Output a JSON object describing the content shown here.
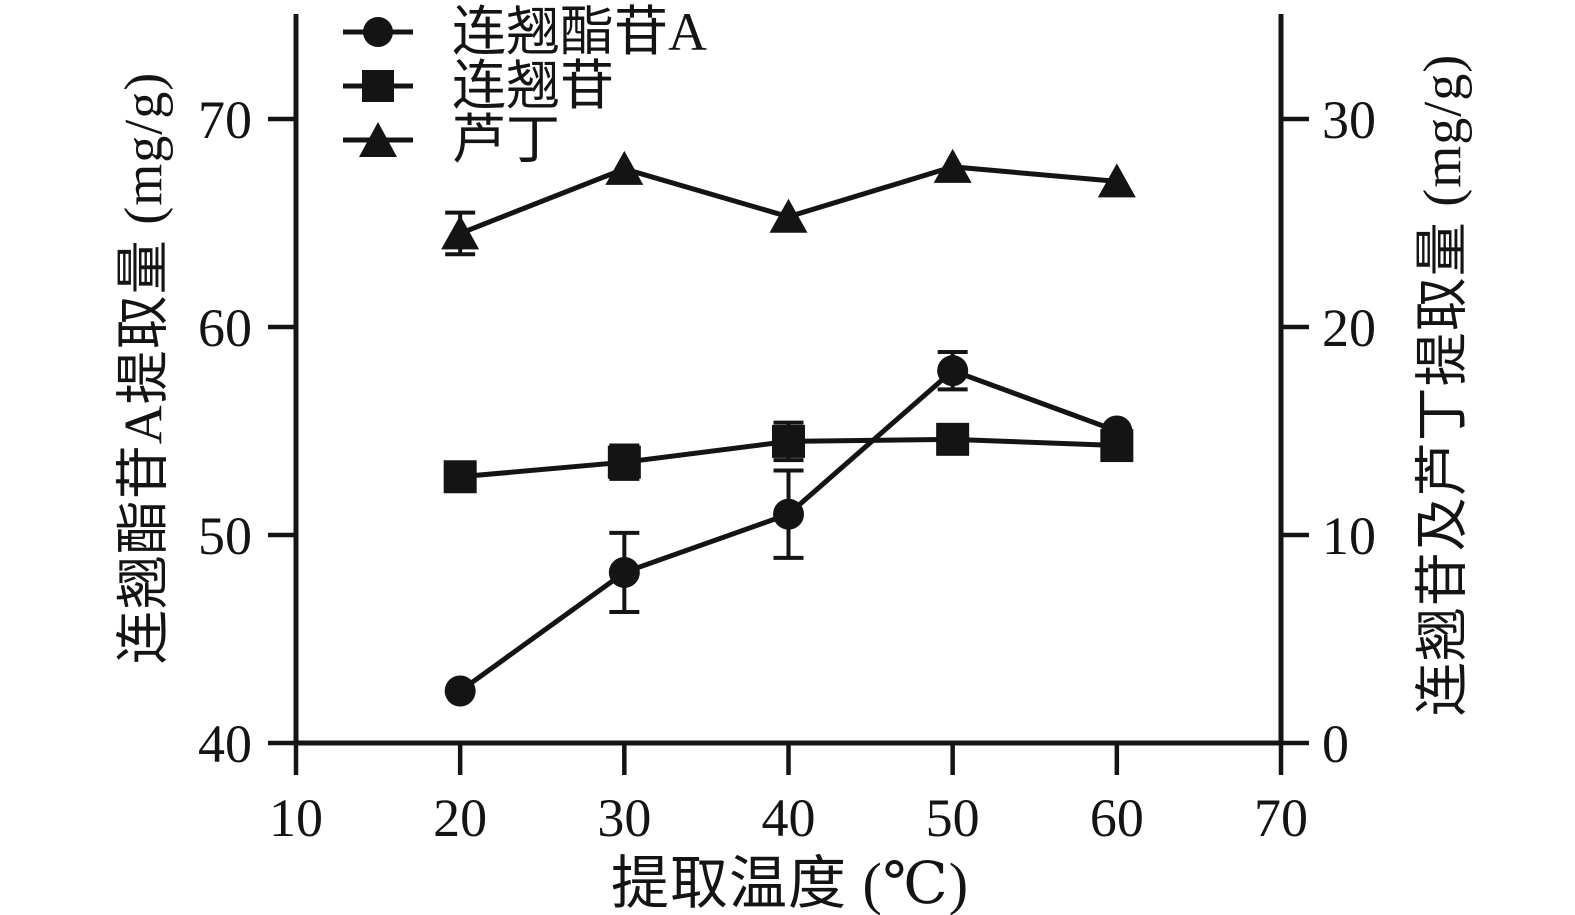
{
  "figure": {
    "background": "#ffffff",
    "ink_color": "#141414"
  },
  "chart_data": {
    "type": "line",
    "x": [
      20,
      30,
      40,
      50,
      60
    ],
    "xlabel": "提取温度 (℃)",
    "x_axis": {
      "min": 10,
      "max": 70,
      "ticks": [
        10,
        20,
        30,
        40,
        50,
        60,
        70
      ]
    },
    "left_axis": {
      "label": "连翘酯苷A提取量 (mg/g)",
      "min": 40,
      "max": 75,
      "ticks": [
        40,
        50,
        60,
        70
      ]
    },
    "right_axis": {
      "label": "连翘苷及芦丁提取量 (mg/g)",
      "min": 0,
      "max": 35,
      "ticks": [
        0,
        10,
        20,
        30
      ]
    },
    "grid": false,
    "legend_position": "top-left-inside",
    "series": [
      {
        "name": "连翘酯苷A",
        "axis": "left",
        "marker": "circle",
        "color": "#141414",
        "values": [
          42.5,
          48.2,
          51.0,
          57.9,
          55.0
        ],
        "errors": [
          null,
          1.9,
          2.1,
          0.9,
          null
        ]
      },
      {
        "name": "连翘苷",
        "axis": "right",
        "marker": "square",
        "color": "#141414",
        "values": [
          12.8,
          13.5,
          14.5,
          14.6,
          14.3
        ],
        "errors": [
          null,
          0.8,
          0.9,
          null,
          null
        ]
      },
      {
        "name": "芦丁",
        "axis": "right",
        "marker": "triangle",
        "color": "#141414",
        "values": [
          24.5,
          27.6,
          25.3,
          27.7,
          27.0
        ],
        "errors": [
          1.0,
          null,
          null,
          null,
          null
        ]
      }
    ]
  }
}
